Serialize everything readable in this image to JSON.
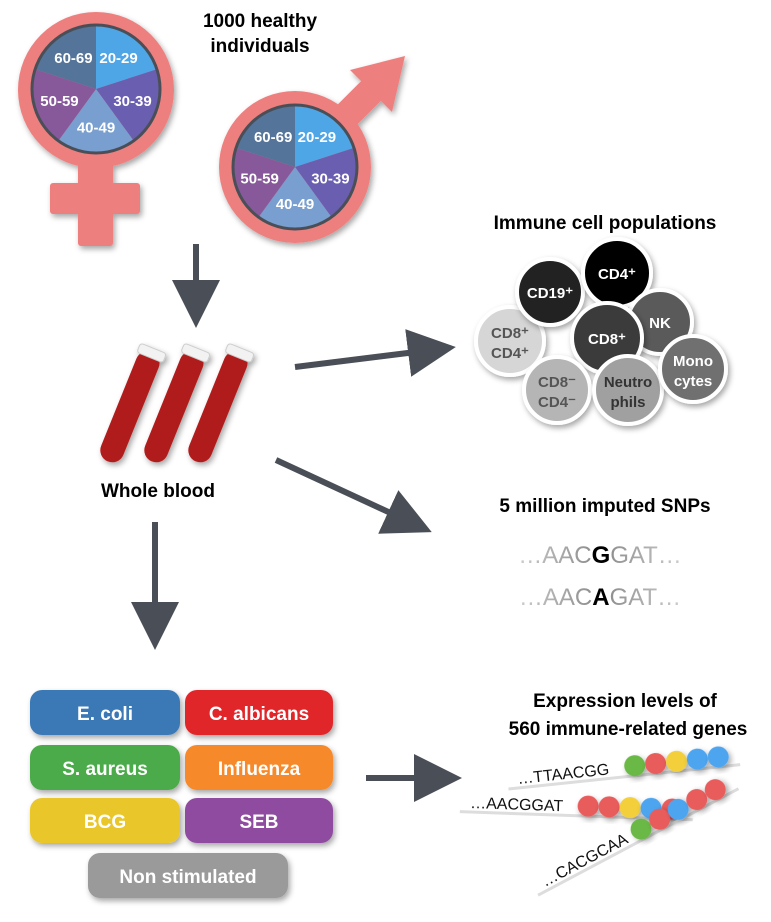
{
  "title": {
    "line1": "1000 healthy",
    "line2": "individuals"
  },
  "age_groups": [
    "20-29",
    "30-39",
    "40-49",
    "50-59",
    "60-69"
  ],
  "age_colors": [
    "#4fa6e6",
    "#6a5eb0",
    "#789fcf",
    "#87599a",
    "#547499"
  ],
  "symbol_color": "#ee7f7f",
  "whole_blood": "Whole blood",
  "immune": {
    "title": "Immune cell populations",
    "cells": [
      {
        "line1": "CD8⁺",
        "line2": "CD4⁺",
        "fill": "#d6d6d6",
        "text": "#555"
      },
      {
        "line1": "CD19⁺",
        "line2": "",
        "fill": "#222",
        "text": "#fff"
      },
      {
        "line1": "CD4⁺",
        "line2": "",
        "fill": "#000",
        "text": "#fff"
      },
      {
        "line1": "NK",
        "line2": "",
        "fill": "#5a5a5a",
        "text": "#fff"
      },
      {
        "line1": "CD8⁺",
        "line2": "",
        "fill": "#3a3a3a",
        "text": "#fff"
      },
      {
        "line1": "CD8⁻",
        "line2": "CD4⁻",
        "fill": "#b5b5b5",
        "text": "#555"
      },
      {
        "line1": "Neutro",
        "line2": "phils",
        "fill": "#a0a0a0",
        "text": "#333"
      },
      {
        "line1": "Mono",
        "line2": "cytes",
        "fill": "#707070",
        "text": "#fff"
      }
    ]
  },
  "snps": {
    "title": "5 million imputed SNPs",
    "seq1": {
      "pre": "…AAC",
      "snp": "G",
      "post": "GAT…"
    },
    "seq2": {
      "pre": "…AAC",
      "snp": "A",
      "post": "GAT…"
    }
  },
  "stimuli": [
    {
      "label": "E. coli",
      "color": "#3a79b6"
    },
    {
      "label": "C. albicans",
      "color": "#e1262b"
    },
    {
      "label": "S. aureus",
      "color": "#4caa4a"
    },
    {
      "label": "Influenza",
      "color": "#f6892c"
    },
    {
      "label": "BCG",
      "color": "#e9c72b"
    },
    {
      "label": "SEB",
      "color": "#8f4b9f"
    },
    {
      "label": "Non stimulated",
      "color": "#9a9a9a"
    }
  ],
  "expression": {
    "title1": "Expression levels of",
    "title2": "560 immune-related genes",
    "seqs": [
      "…TTAACGG",
      "…AACGGAT",
      "…CACGCAA"
    ],
    "dot_colors": {
      "green": "#6bb845",
      "red": "#e85c5c",
      "yellow": "#f2cf3b",
      "blue": "#4ea5f0"
    }
  },
  "arrow_color": "#4a4f57"
}
